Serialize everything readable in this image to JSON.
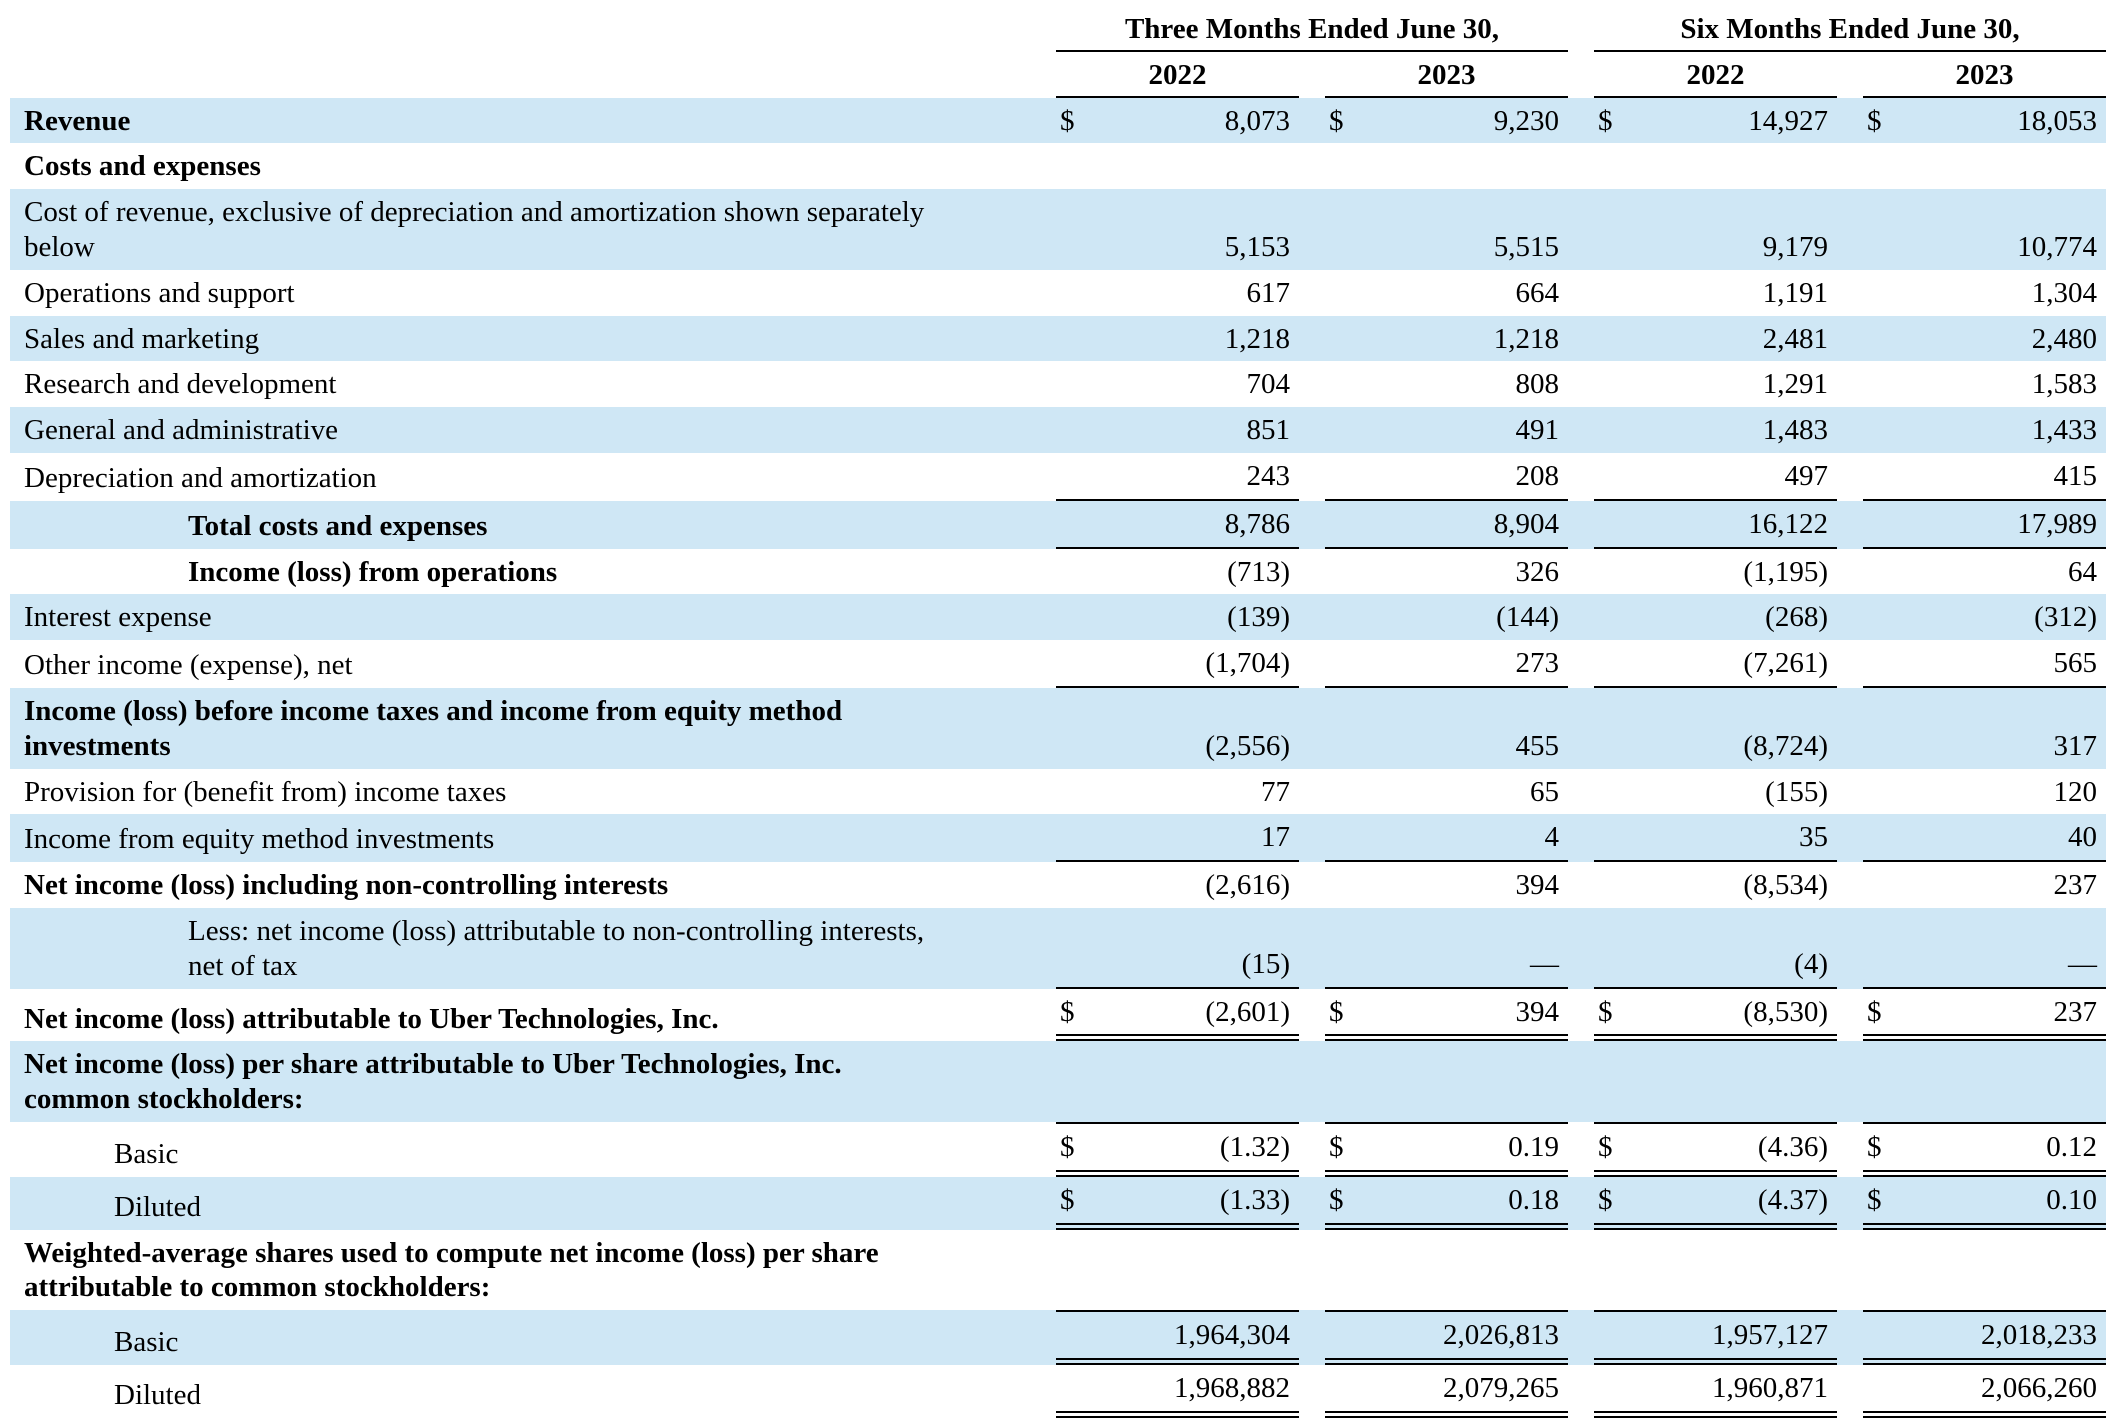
{
  "currency_symbol": "$",
  "colors": {
    "row_shade": "#cfe7f5",
    "text": "#000000",
    "rule": "#000000"
  },
  "header": {
    "groups": [
      {
        "label": "Three Months Ended June 30,",
        "years": [
          "2022",
          "2023"
        ]
      },
      {
        "label": "Six Months Ended June 30,",
        "years": [
          "2022",
          "2023"
        ]
      }
    ]
  },
  "rows": [
    {
      "label": "Revenue",
      "bold": true,
      "indent": 0,
      "shade": true,
      "dollar": true,
      "rule": "none",
      "values": [
        "8,073",
        "9,230",
        "14,927",
        "18,053"
      ]
    },
    {
      "label": "Costs and expenses",
      "bold": true,
      "indent": 0,
      "shade": false,
      "dollar": false,
      "rule": "none",
      "values": []
    },
    {
      "label": "Cost of revenue, exclusive of depreciation and amortization shown separately below",
      "bold": false,
      "indent": 0,
      "shade": true,
      "dollar": false,
      "rule": "none",
      "values": [
        "5,153",
        "5,515",
        "9,179",
        "10,774"
      ]
    },
    {
      "label": "Operations and support",
      "bold": false,
      "indent": 0,
      "shade": false,
      "dollar": false,
      "rule": "none",
      "values": [
        "617",
        "664",
        "1,191",
        "1,304"
      ]
    },
    {
      "label": "Sales and marketing",
      "bold": false,
      "indent": 0,
      "shade": true,
      "dollar": false,
      "rule": "none",
      "values": [
        "1,218",
        "1,218",
        "2,481",
        "2,480"
      ]
    },
    {
      "label": "Research and development",
      "bold": false,
      "indent": 0,
      "shade": false,
      "dollar": false,
      "rule": "none",
      "values": [
        "704",
        "808",
        "1,291",
        "1,583"
      ]
    },
    {
      "label": "General and administrative",
      "bold": false,
      "indent": 0,
      "shade": true,
      "dollar": false,
      "rule": "none",
      "values": [
        "851",
        "491",
        "1,483",
        "1,433"
      ]
    },
    {
      "label": "Depreciation and amortization",
      "bold": false,
      "indent": 0,
      "shade": false,
      "dollar": false,
      "rule": "single",
      "values": [
        "243",
        "208",
        "497",
        "415"
      ]
    },
    {
      "label": "Total costs and expenses",
      "bold": true,
      "indent": 2,
      "shade": true,
      "dollar": false,
      "rule": "single",
      "values": [
        "8,786",
        "8,904",
        "16,122",
        "17,989"
      ]
    },
    {
      "label": "Income (loss) from operations",
      "bold": true,
      "indent": 2,
      "shade": false,
      "dollar": false,
      "rule": "none",
      "values": [
        "(713)",
        "326",
        "(1,195)",
        "64"
      ]
    },
    {
      "label": "Interest expense",
      "bold": false,
      "indent": 0,
      "shade": true,
      "dollar": false,
      "rule": "none",
      "values": [
        "(139)",
        "(144)",
        "(268)",
        "(312)"
      ]
    },
    {
      "label": "Other income (expense), net",
      "bold": false,
      "indent": 0,
      "shade": false,
      "dollar": false,
      "rule": "single",
      "values": [
        "(1,704)",
        "273",
        "(7,261)",
        "565"
      ]
    },
    {
      "label": "Income (loss) before income taxes and income from equity method investments",
      "bold": true,
      "indent": 0,
      "shade": true,
      "dollar": false,
      "rule": "none",
      "values": [
        "(2,556)",
        "455",
        "(8,724)",
        "317"
      ]
    },
    {
      "label": "Provision for (benefit from) income taxes",
      "bold": false,
      "indent": 0,
      "shade": false,
      "dollar": false,
      "rule": "none",
      "values": [
        "77",
        "65",
        "(155)",
        "120"
      ]
    },
    {
      "label": "Income from equity method investments",
      "bold": false,
      "indent": 0,
      "shade": true,
      "dollar": false,
      "rule": "single",
      "values": [
        "17",
        "4",
        "35",
        "40"
      ]
    },
    {
      "label": "Net income (loss) including non-controlling interests",
      "bold": true,
      "indent": 0,
      "shade": false,
      "dollar": false,
      "rule": "none",
      "values": [
        "(2,616)",
        "394",
        "(8,534)",
        "237"
      ]
    },
    {
      "label": "Less: net income (loss) attributable to non-controlling interests, net of tax",
      "bold": false,
      "indent": 2,
      "shade": true,
      "dollar": false,
      "rule": "single",
      "values": [
        "(15)",
        "—",
        "(4)",
        "—"
      ]
    },
    {
      "label": "Net income (loss) attributable to Uber Technologies, Inc.",
      "bold": true,
      "indent": 0,
      "shade": false,
      "dollar": true,
      "rule": "double",
      "values": [
        "(2,601)",
        "394",
        "(8,530)",
        "237"
      ]
    },
    {
      "label": "Net income (loss) per share attributable to Uber Technologies, Inc. common stockholders:",
      "bold": true,
      "indent": 0,
      "shade": true,
      "dollar": false,
      "rule": "none",
      "values": []
    },
    {
      "label": "Basic",
      "bold": false,
      "indent": 1,
      "shade": false,
      "dollar": true,
      "rule": "top-double",
      "values": [
        "(1.32)",
        "0.19",
        "(4.36)",
        "0.12"
      ]
    },
    {
      "label": "Diluted",
      "bold": false,
      "indent": 1,
      "shade": true,
      "dollar": true,
      "rule": "double",
      "values": [
        "(1.33)",
        "0.18",
        "(4.37)",
        "0.10"
      ]
    },
    {
      "label": "Weighted-average shares used to compute net income (loss) per share attributable to common stockholders:",
      "bold": true,
      "indent": 0,
      "shade": false,
      "dollar": false,
      "rule": "none",
      "values": []
    },
    {
      "label": "Basic",
      "bold": false,
      "indent": 1,
      "shade": true,
      "dollar": false,
      "rule": "top-double",
      "values": [
        "1,964,304",
        "2,026,813",
        "1,957,127",
        "2,018,233"
      ]
    },
    {
      "label": "Diluted",
      "bold": false,
      "indent": 1,
      "shade": false,
      "dollar": false,
      "rule": "double",
      "values": [
        "1,968,882",
        "2,079,265",
        "1,960,871",
        "2,066,260"
      ]
    }
  ]
}
